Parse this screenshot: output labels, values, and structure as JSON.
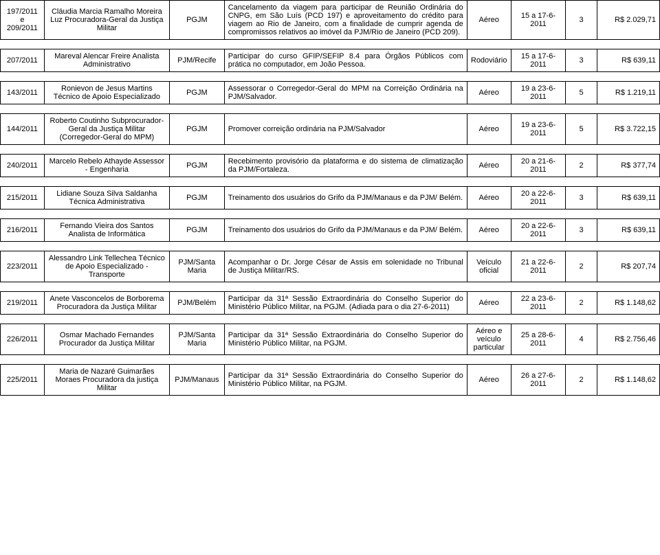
{
  "rows": [
    {
      "id": "197/2011 e 209/2011",
      "person": "Cláudia Marcia Ramalho Moreira Luz Procuradora-Geral da Justiça Militar",
      "origin": "PGJM",
      "desc": "Cancelamento da viagem para participar de Reunião Ordinária do CNPG, em São Luís (PCD 197) e aproveitamento do crédito para viagem ao Rio de Janeiro, com a finalidade de cumprir agenda de compromissos relativos ao imóvel da PJM/Rio de Janeiro (PCD 209).",
      "mode": "Aéreo",
      "period": "15 a 17-6-2011",
      "days": "3",
      "value": "R$ 2.029,71"
    },
    {
      "id": "207/2011",
      "person": "Mareval Alencar Freire Analista Administrativo",
      "origin": "PJM/Recife",
      "desc": "Participar do curso GFIP/SEFIP 8.4 para Órgãos Públicos com prática no computador, em João Pessoa.",
      "mode": "Rodoviário",
      "period": "15 a 17-6-2011",
      "days": "3",
      "value": "R$ 639,11"
    },
    {
      "id": "143/2011",
      "person": "Ronievon de Jesus Martins Técnico de Apoio Especializado",
      "origin": "PGJM",
      "desc": "Assessorar o Corregedor-Geral do MPM na Correição Ordinária na PJM/Salvador.",
      "mode": "Aéreo",
      "period": "19 a 23-6-2011",
      "days": "5",
      "value": "R$ 1.219,11"
    },
    {
      "id": "144/2011",
      "person": "Roberto Coutinho Subprocurador-Geral da Justiça Militar (Corregedor-Geral do MPM)",
      "origin": "PGJM",
      "desc": "Promover correição ordinária na PJM/Salvador",
      "mode": "Aéreo",
      "period": "19 a 23-6-2011",
      "days": "5",
      "value": "R$ 3.722,15"
    },
    {
      "id": "240/2011",
      "person": "Marcelo Rebelo Athayde Assessor - Engenharia",
      "origin": "PGJM",
      "desc": "Recebimento provisório da plataforma e do sistema de climatização da PJM/Fortaleza.",
      "mode": "Aéreo",
      "period": "20 a 21-6-2011",
      "days": "2",
      "value": "R$ 377,74"
    },
    {
      "id": "215/2011",
      "person": "Lidiane Souza Silva Saldanha Técnica Administrativa",
      "origin": "PGJM",
      "desc": "Treinamento dos usuários do Grifo da PJM/Manaus e da PJM/ Belém.",
      "mode": "Aéreo",
      "period": "20 a 22-6-2011",
      "days": "3",
      "value": "R$ 639,11"
    },
    {
      "id": "216/2011",
      "person": "Fernando Vieira dos Santos Analista de Informática",
      "origin": "PGJM",
      "desc": "Treinamento dos usuários do Grifo da PJM/Manaus e da PJM/ Belém.",
      "mode": "Aéreo",
      "period": "20 a 22-6-2011",
      "days": "3",
      "value": "R$ 639,11"
    },
    {
      "id": "223/2011",
      "person": "Alessandro Link Tellechea Técnico de Apoio Especializado - Transporte",
      "origin": "PJM/Santa Maria",
      "desc": "Acompanhar o Dr. Jorge César de Assis em solenidade no Tribunal de Justiça Militar/RS.",
      "mode": "Veículo oficial",
      "period": "21 a 22-6-2011",
      "days": "2",
      "value": "R$ 207,74"
    },
    {
      "id": "219/2011",
      "person": "Anete Vasconcelos de Borborema Procuradora da Justiça Militar",
      "origin": "PJM/Belém",
      "desc": "Participar da 31ª Sessão Extraordinária do Conselho Superior do Ministério Público Militar, na PGJM. (Adiada para o dia 27-6-2011)",
      "mode": "Aéreo",
      "period": "22 a 23-6-2011",
      "days": "2",
      "value": "R$ 1.148,62"
    },
    {
      "id": "226/2011",
      "person": "Osmar Machado Fernandes Procurador da Justiça Militar",
      "origin": "PJM/Santa Maria",
      "desc": "Participar da 31ª Sessão Extraordinária do Conselho Superior do Ministério Público Militar, na PGJM.",
      "mode": "Aéreo e veículo particular",
      "period": "25 a 28-6-2011",
      "days": "4",
      "value": "R$ 2.756,46"
    },
    {
      "id": "225/2011",
      "person": "Maria de Nazaré Guimarães Moraes Procuradora da justiça Militar",
      "origin": "PJM/Manaus",
      "desc": "Participar da 31ª Sessão Extraordinária do Conselho Superior do Ministério Público Militar, na PGJM.",
      "mode": "Aéreo",
      "period": "26 a 27-6-2011",
      "days": "2",
      "value": "R$ 1.148,62"
    }
  ]
}
